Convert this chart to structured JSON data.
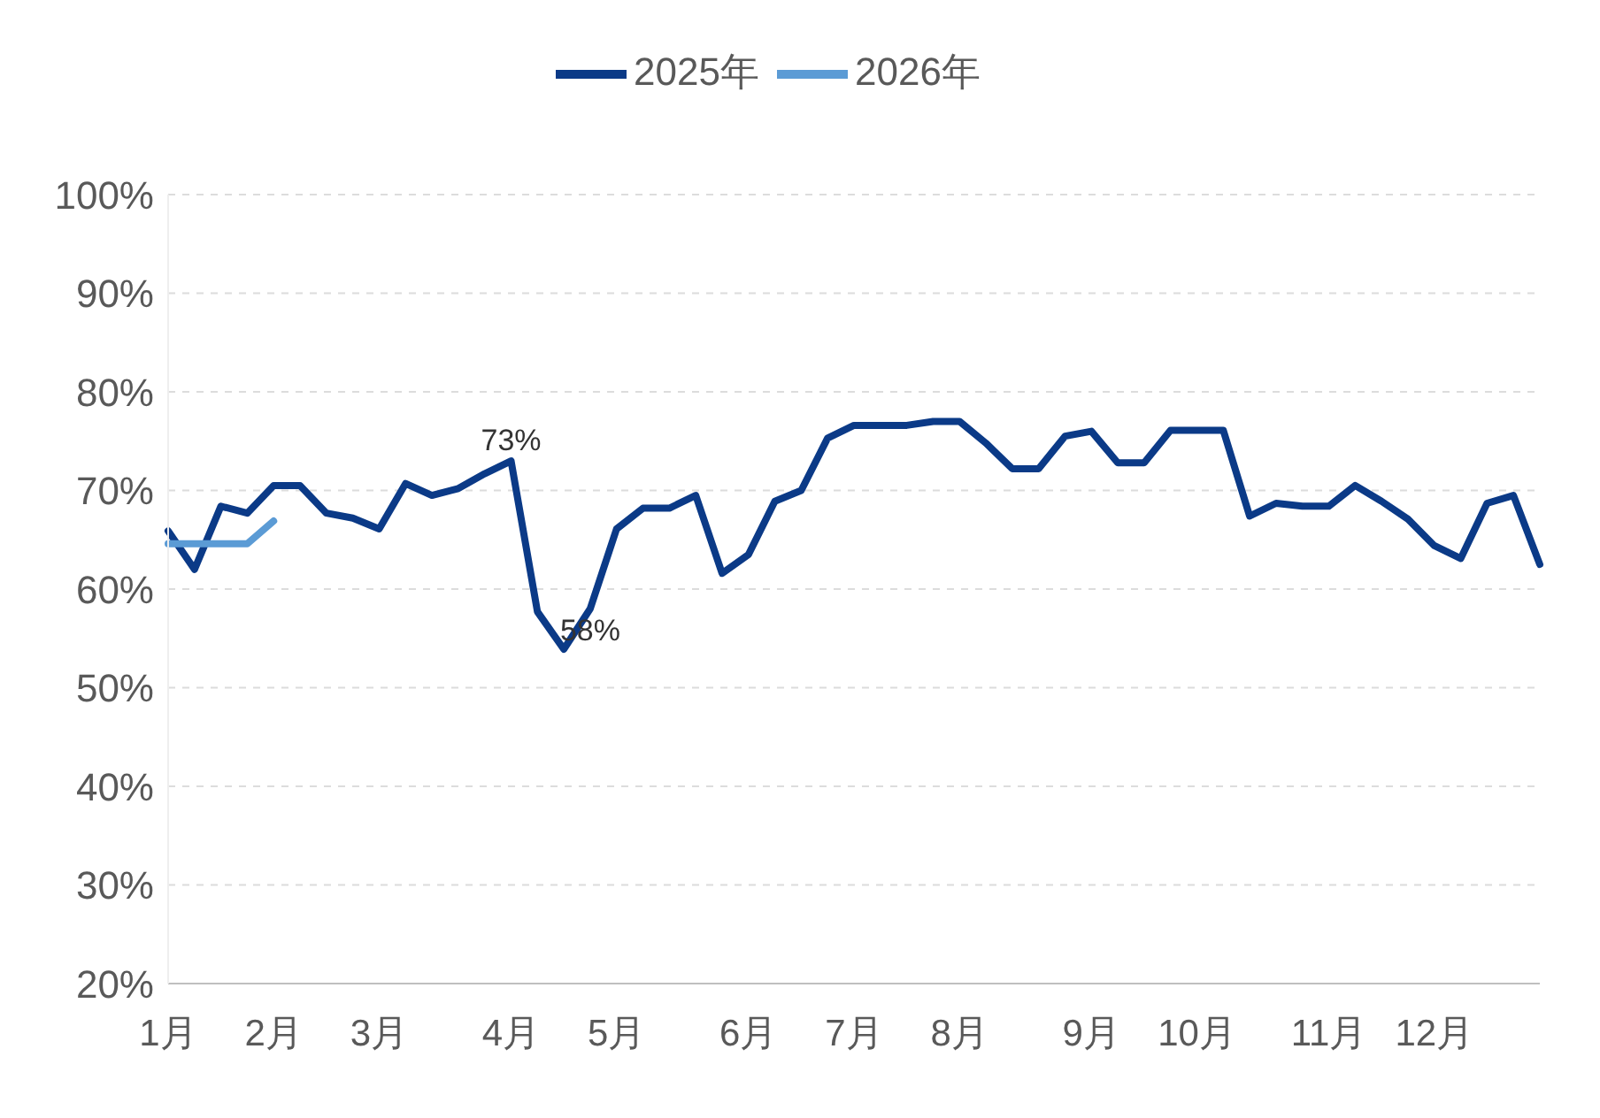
{
  "chart_data": {
    "type": "line",
    "categories": [
      "1月",
      null,
      null,
      null,
      "2月",
      null,
      null,
      null,
      "3月",
      null,
      null,
      null,
      null,
      "4月",
      null,
      null,
      null,
      "5月",
      null,
      null,
      null,
      null,
      "6月",
      null,
      null,
      null,
      "7月",
      null,
      null,
      null,
      "8月",
      null,
      null,
      null,
      null,
      "9月",
      null,
      null,
      null,
      "10月",
      null,
      null,
      null,
      null,
      "11月",
      null,
      null,
      null,
      "12月",
      null,
      null,
      null,
      null
    ],
    "series": [
      {
        "name": "2025年",
        "color": "#0b3a87",
        "values": [
          65.9,
          62.0,
          68.4,
          67.7,
          70.5,
          70.5,
          67.7,
          67.2,
          66.1,
          70.7,
          69.5,
          70.2,
          71.7,
          73.0,
          57.7,
          53.9,
          58.0,
          66.1,
          68.2,
          68.2,
          69.5,
          61.6,
          63.5,
          68.9,
          70.0,
          75.3,
          76.6,
          76.6,
          76.6,
          77.0,
          77.0,
          74.8,
          72.2,
          72.2,
          75.5,
          76.0,
          72.8,
          72.8,
          76.1,
          76.1,
          76.1,
          67.4,
          68.7,
          68.4,
          68.4,
          70.5,
          68.9,
          67.1,
          64.4,
          63.1,
          68.7,
          69.5,
          62.5
        ]
      },
      {
        "name": "2026年",
        "color": "#5b9bd5",
        "values": [
          64.6,
          64.6,
          64.6,
          64.6,
          66.9,
          null,
          null,
          null,
          null,
          null,
          null,
          null,
          null,
          null,
          null,
          null,
          null,
          null,
          null,
          null,
          null,
          null,
          null,
          null,
          null,
          null,
          null,
          null,
          null,
          null,
          null,
          null,
          null,
          null,
          null,
          null,
          null,
          null,
          null,
          null,
          null,
          null,
          null,
          null,
          null,
          null,
          null,
          null,
          null,
          null,
          null,
          null,
          null
        ]
      }
    ],
    "ylim": [
      20,
      100
    ],
    "yticks": [
      {
        "value": 20,
        "label": "20%"
      },
      {
        "value": 30,
        "label": "30%"
      },
      {
        "value": 40,
        "label": "40%"
      },
      {
        "value": 50,
        "label": "50%"
      },
      {
        "value": 60,
        "label": "60%"
      },
      {
        "value": 70,
        "label": "70%"
      },
      {
        "value": 80,
        "label": "80%"
      },
      {
        "value": 90,
        "label": "90%"
      },
      {
        "value": 100,
        "label": "100%"
      }
    ],
    "grid": "y",
    "legend": "top",
    "marker": "none",
    "line_style": "solid",
    "annotations": [
      {
        "text": "73%",
        "x": "4月",
        "y": 73
      },
      {
        "text": "58%",
        "y": 58
      }
    ]
  }
}
